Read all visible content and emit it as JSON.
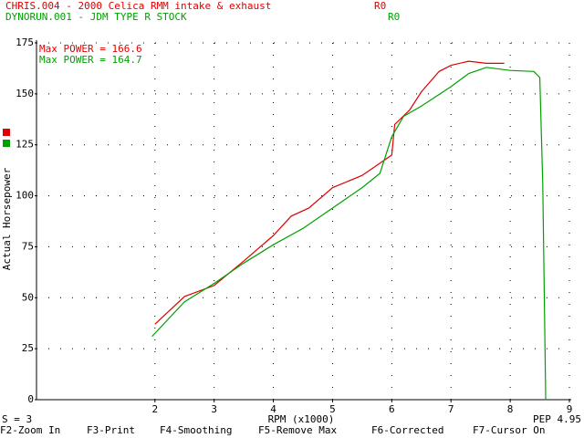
{
  "chart_data": {
    "type": "line",
    "title": "CHRIS.004 - 2000 Celica RMM intake & exhaust",
    "title_tag": "R0",
    "subtitle": "DYNORUN.001 - JDM TYPE R STOCK",
    "subtitle_tag": "R0",
    "x_label": "RPM (x1000)",
    "y_label": "Actual Horsepower",
    "annotations": [
      "Max POWER = 166.6",
      "Max POWER = 164.7"
    ],
    "smoothing_label": "S = 3",
    "pep_label": "PEP 4.95",
    "function_keys": [
      "F2-Zoom In",
      "F3-Print",
      "F4-Smoothing",
      "F5-Remove Max",
      "F6-Corrected",
      "F7-Cursor On"
    ],
    "series": [
      {
        "color": "#e00000",
        "x": [
          2.0,
          2.5,
          3.0,
          3.5,
          4.0,
          4.3,
          4.6,
          5.0,
          5.5,
          5.8,
          6.0,
          6.05,
          6.3,
          6.5,
          6.8,
          7.0,
          7.3,
          7.6,
          7.9
        ],
        "values": [
          37,
          50.6,
          56,
          68,
          80.5,
          90,
          94,
          104,
          110,
          116,
          120,
          135,
          142,
          151,
          161,
          164,
          166,
          165,
          165
        ]
      },
      {
        "color": "#00a000",
        "x": [
          1.95,
          2.5,
          3.0,
          3.5,
          4.0,
          4.5,
          5.0,
          5.5,
          5.8,
          6.0,
          6.2,
          6.5,
          7.0,
          7.3,
          7.6,
          8.0,
          8.4,
          8.5,
          8.55,
          8.6
        ],
        "values": [
          31,
          48,
          57,
          67,
          76,
          84,
          94,
          104,
          111,
          129,
          139,
          144,
          153.5,
          160,
          163,
          161.5,
          161,
          158,
          106,
          0
        ]
      }
    ],
    "xlim": [
      0,
      9
    ],
    "ylim": [
      0,
      175
    ],
    "xticks": [
      2,
      3,
      4,
      5,
      6,
      7,
      8,
      9
    ],
    "yticks": [
      0,
      25,
      50,
      75,
      100,
      125,
      150,
      175
    ],
    "grid": true
  }
}
